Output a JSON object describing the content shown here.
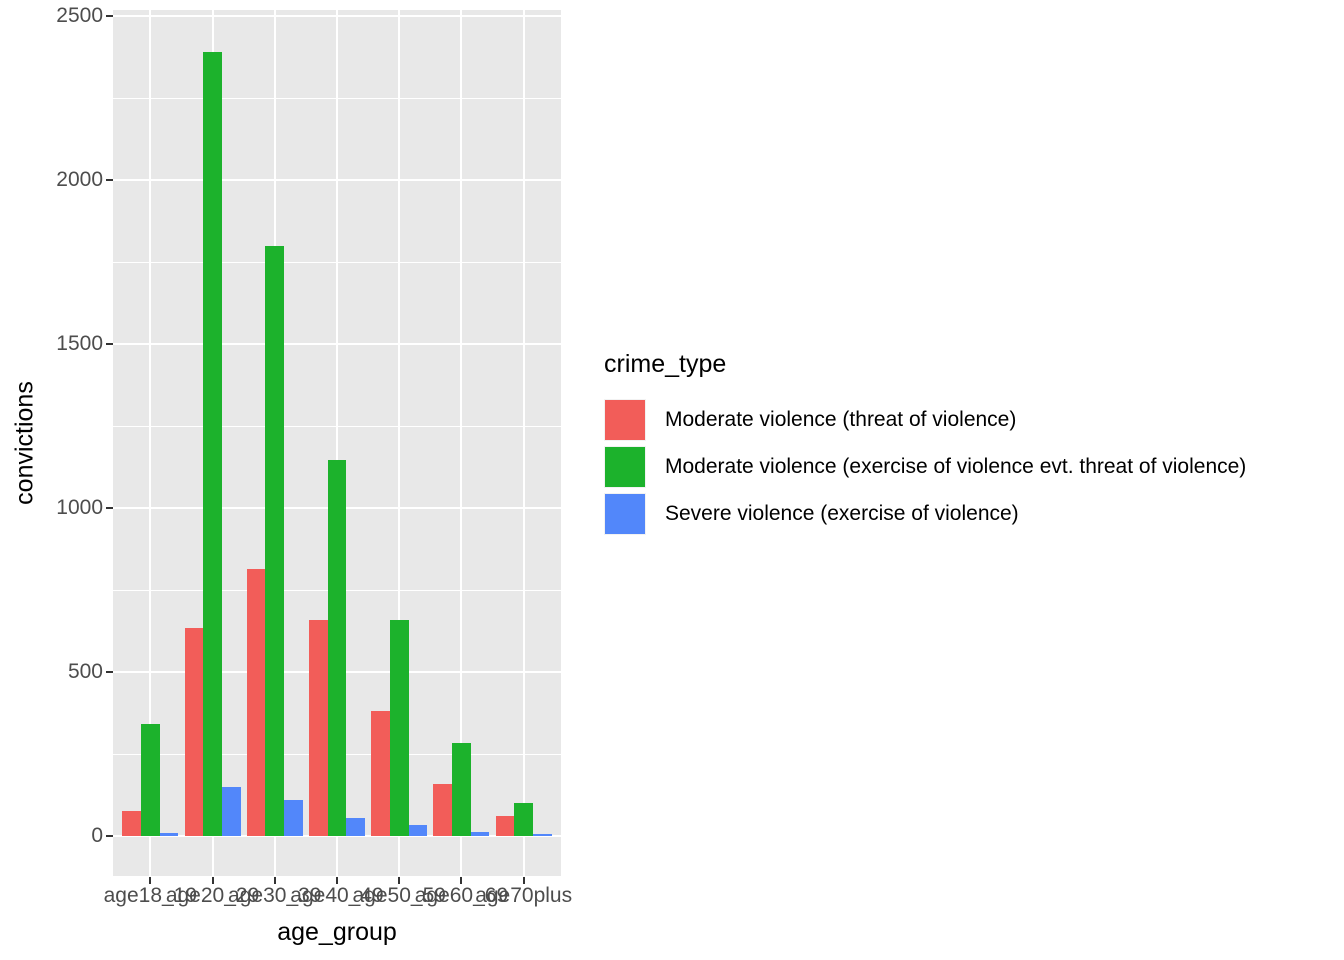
{
  "chart_data": {
    "type": "bar",
    "subtype": "grouped-dodged",
    "title": "",
    "xlabel": "age_group",
    "ylabel": "convictions",
    "categories": [
      "age18_19",
      "age20_29",
      "age30_39",
      "age40_49",
      "age50_59",
      "age60_69",
      "age70plus"
    ],
    "series": [
      {
        "name": "Moderate violence (threat of violence)",
        "color": "#F25D59",
        "values": [
          75,
          635,
          815,
          660,
          380,
          160,
          60
        ]
      },
      {
        "name": "Moderate violence (exercise of violence evt. threat of violence)",
        "color": "#1CB22C",
        "values": [
          340,
          2390,
          1800,
          1145,
          660,
          285,
          100
        ]
      },
      {
        "name": "Severe violence (exercise of violence)",
        "color": "#5287FA",
        "values": [
          8,
          150,
          110,
          55,
          35,
          13,
          5
        ]
      }
    ],
    "legend_title": "crime_type",
    "legend_position": "right",
    "ylim": [
      0,
      2500
    ],
    "y_ticks": [
      0,
      500,
      1000,
      1500,
      2000,
      2500
    ],
    "y_minor_ticks": [
      250,
      750,
      1250,
      1750,
      2250
    ],
    "grid": true,
    "panel_bg": "#E8E8E8",
    "grid_color": "#FFFFFF",
    "tick_label_color": "#4D4D4D",
    "tick_mark_color": "#333333"
  }
}
